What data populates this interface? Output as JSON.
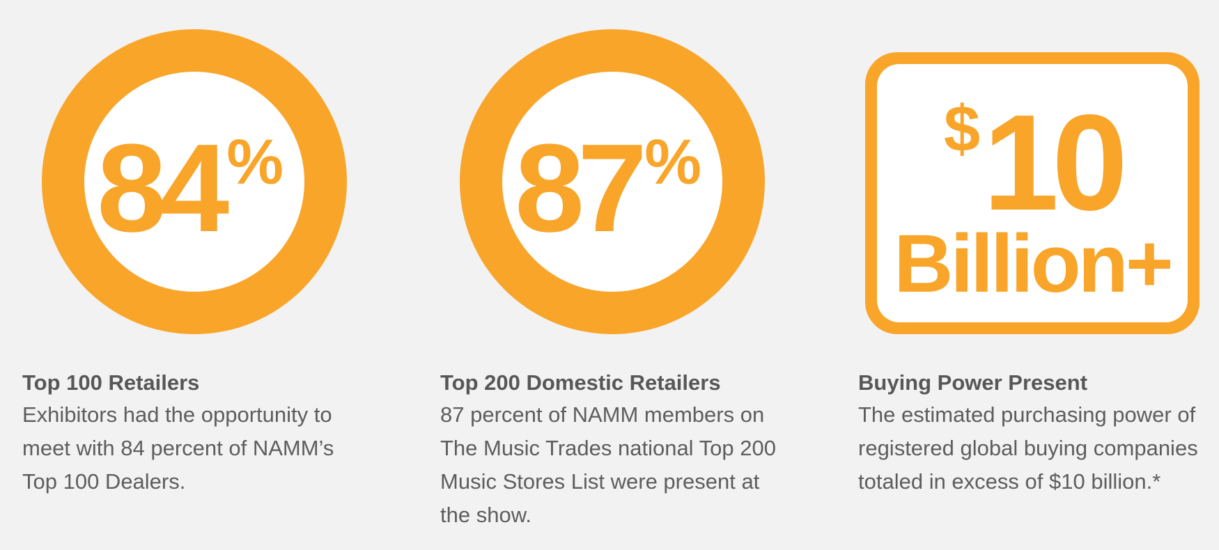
{
  "stats": [
    {
      "number": "84",
      "percent_sign": "%",
      "heading": "Top 100 Retailers",
      "body": "Exhibitors had the opportunity to meet with 84 percent of NAMM’s Top 100 Dealers."
    },
    {
      "number": "87",
      "percent_sign": "%",
      "heading": "Top 200 Domestic Retailers",
      "body": "87 percent of NAMM members on The Music Trades national Top 200 Music Stores List were present at the show."
    },
    {
      "currency": "$",
      "amount": "10",
      "unit": "Billion+",
      "heading": "Buying Power Present",
      "body": "The estimated purchasing power of registered global buying companies totaled in excess of $10 billion.*"
    }
  ],
  "colors": {
    "accent": "#f9a52a",
    "background": "#f2f2f2",
    "text": "#5b5b5b",
    "graphic_fill": "#ffffff"
  }
}
